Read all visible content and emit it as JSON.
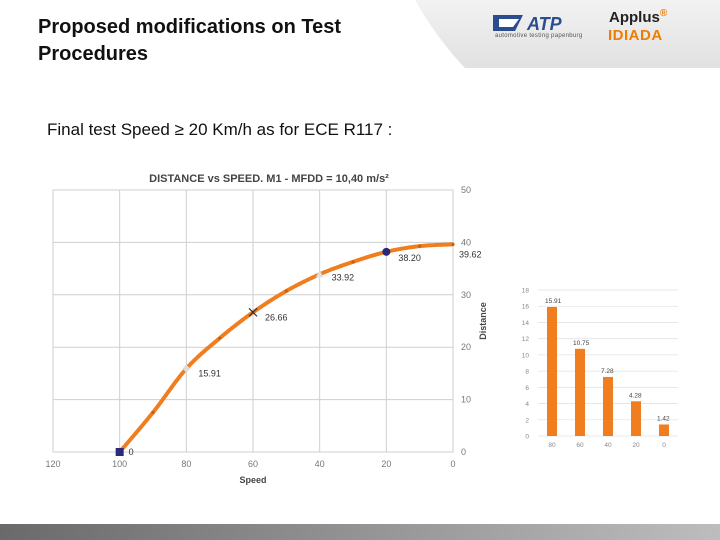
{
  "header": {
    "title_line1": "Proposed modifications on Test",
    "title_line2": "Procedures"
  },
  "logos": {
    "atp": "ATP",
    "atp_tagline": "automotive testing papenburg",
    "applus": "Applus",
    "idiada": "IDIADA"
  },
  "slide": {
    "subtitle": "Final test Speed ≥ 20 Km/h as for ECE R117 :"
  },
  "colors": {
    "curve": "#f07d1e",
    "bar": "#f07d1e",
    "marker": "#2a2a7a",
    "grid": "#cfcfcf"
  },
  "chart_data": [
    {
      "type": "line",
      "title": "DISTANCE  vs SPEED. M1 - MFDD = 10,40 m/s²",
      "xlabel": "Speed",
      "ylabel": "Distance",
      "x_reversed": true,
      "xlim": [
        120,
        0
      ],
      "ylim": [
        0,
        50
      ],
      "x_ticks": [
        "120",
        "100",
        "80",
        "60",
        "40",
        "20",
        "0"
      ],
      "y_ticks": [
        "0",
        "10",
        "20",
        "30",
        "40",
        "50"
      ],
      "grid": true,
      "series": [
        {
          "x": [
            100,
            90,
            80,
            70,
            60,
            50,
            40,
            30,
            20,
            10,
            0
          ],
          "y": [
            0,
            7.55,
            15.91,
            21.72,
            26.66,
            30.72,
            33.92,
            36.29,
            38.2,
            39.29,
            39.62
          ]
        }
      ],
      "annotations": [
        {
          "x": 100,
          "y": 0,
          "label": "0",
          "marker": "square"
        },
        {
          "x": 80,
          "y": 15.91,
          "label": "15.91",
          "marker": "diamond"
        },
        {
          "x": 60,
          "y": 26.66,
          "label": "26.66",
          "marker": "cross"
        },
        {
          "x": 40,
          "y": 33.92,
          "label": "33.92",
          "marker": "triangle"
        },
        {
          "x": 20,
          "y": 38.2,
          "label": "38.20",
          "marker": "circle"
        },
        {
          "x": 0,
          "y": 39.62,
          "label": "39.62",
          "marker": "none"
        }
      ]
    },
    {
      "type": "bar",
      "categories": [
        "80",
        "60",
        "40",
        "20",
        "0"
      ],
      "values": [
        15.91,
        10.75,
        7.28,
        4.28,
        1.42
      ],
      "value_labels": [
        "15.91",
        "10.75",
        "7.28",
        "4.28",
        "1.42"
      ],
      "ylim": [
        0,
        18
      ],
      "y_ticks": [
        "0",
        "2",
        "4",
        "6",
        "8",
        "10",
        "12",
        "14",
        "16",
        "18"
      ],
      "grid": true
    }
  ]
}
